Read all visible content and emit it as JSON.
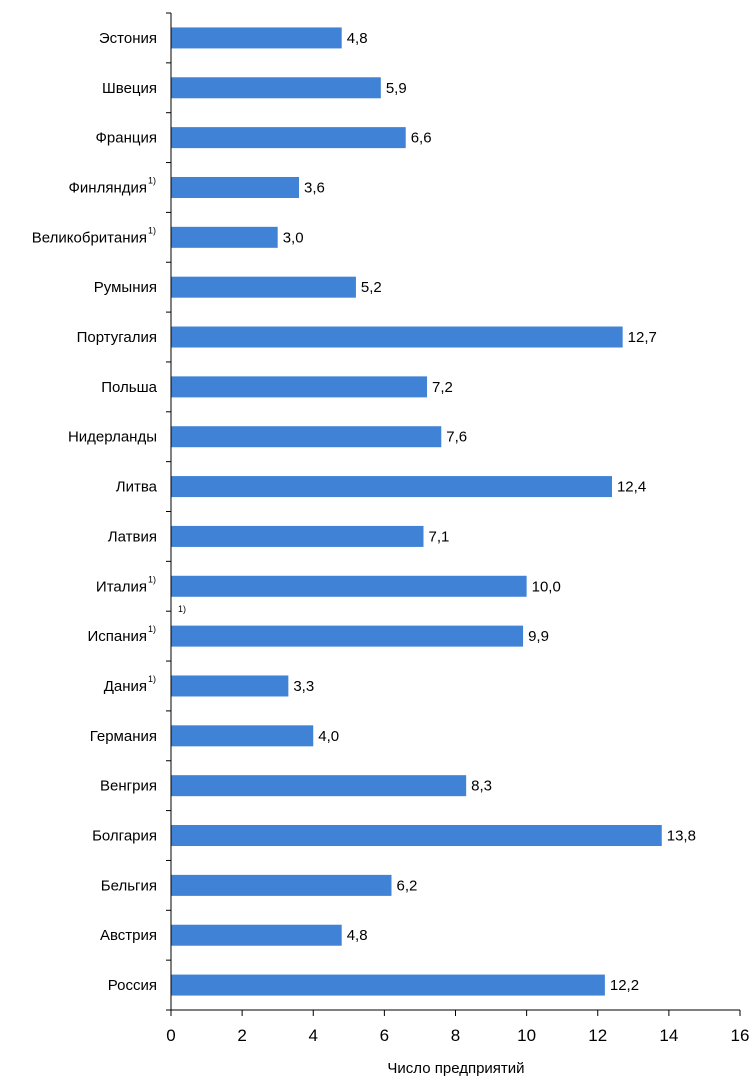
{
  "chart_data": {
    "type": "bar",
    "orientation": "horizontal",
    "xlabel": "Число предприятий",
    "xlim": [
      0,
      16
    ],
    "xticks": [
      "0",
      "2",
      "4",
      "6",
      "8",
      "10",
      "12",
      "14",
      "16"
    ],
    "bar_color": "#3f82d6",
    "categories": [
      {
        "label": "Эстония",
        "footnote": "",
        "value": 4.8,
        "value_label": "4,8"
      },
      {
        "label": "Швеция",
        "footnote": "",
        "value": 5.9,
        "value_label": "5,9"
      },
      {
        "label": "Франция",
        "footnote": "",
        "value": 6.6,
        "value_label": "6,6"
      },
      {
        "label": "Финляндия",
        "footnote": "1)",
        "value": 3.6,
        "value_label": "3,6"
      },
      {
        "label": "Великобритания",
        "footnote": "1)",
        "value": 3.0,
        "value_label": "3,0"
      },
      {
        "label": "Румыния",
        "footnote": "",
        "value": 5.2,
        "value_label": "5,2"
      },
      {
        "label": "Португалия",
        "footnote": "",
        "value": 12.7,
        "value_label": "12,7"
      },
      {
        "label": "Польша",
        "footnote": "",
        "value": 7.2,
        "value_label": "7,2"
      },
      {
        "label": "Нидерланды",
        "footnote": "",
        "value": 7.6,
        "value_label": "7,6"
      },
      {
        "label": "Литва",
        "footnote": "",
        "value": 12.4,
        "value_label": "12,4"
      },
      {
        "label": "Латвия",
        "footnote": "",
        "value": 7.1,
        "value_label": "7,1"
      },
      {
        "label": "Италия",
        "footnote": "1)",
        "value": 10.0,
        "value_label": "10,0"
      },
      {
        "label": "Испания",
        "footnote": "1)",
        "value": 9.9,
        "value_label": "9,9"
      },
      {
        "label": "Дания",
        "footnote": "1)",
        "value": 3.3,
        "value_label": "3,3"
      },
      {
        "label": "Германия",
        "footnote": "",
        "value": 4.0,
        "value_label": "4,0"
      },
      {
        "label": "Венгрия",
        "footnote": "",
        "value": 8.3,
        "value_label": "8,3"
      },
      {
        "label": "Болгария",
        "footnote": "",
        "value": 13.8,
        "value_label": "13,8"
      },
      {
        "label": "Бельгия",
        "footnote": "",
        "value": 6.2,
        "value_label": "6,2"
      },
      {
        "label": "Австрия",
        "footnote": "",
        "value": 4.8,
        "value_label": "4,8"
      },
      {
        "label": "Россия",
        "footnote": "",
        "value": 12.2,
        "value_label": "12,2"
      }
    ],
    "stray_footnote": "1)"
  }
}
